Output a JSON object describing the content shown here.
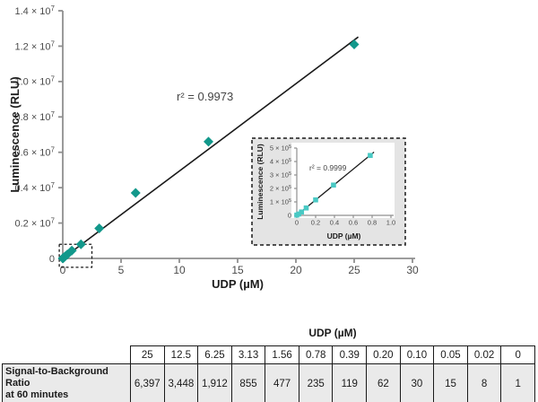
{
  "colors": {
    "main_marker": "#12988b",
    "inset_marker": "#49c9c4",
    "axis": "#8f8f8f",
    "tick_label": "#4b4b4b",
    "title_text": "#1c1c1c",
    "fit_line": "#1a1a1a",
    "annotation_text": "#454545",
    "inset_background": "#e4e4e4",
    "table_cell_background": "#eaeaea",
    "table_border": "#1a1a1a"
  },
  "chart_data": [
    {
      "id": "main-plot",
      "type": "scatter",
      "marker": "diamond",
      "xlabel": "UDP (µM)",
      "ylabel": "Luminescence (RLU)",
      "annotation": "r² = 0.9973",
      "grid": false,
      "legend": null,
      "xlim": [
        0,
        30
      ],
      "ylim": [
        0,
        14000000
      ],
      "xticks": [
        0,
        5,
        10,
        15,
        20,
        25,
        30
      ],
      "xtick_labels": [
        "0",
        "5",
        "10",
        "15",
        "20",
        "25",
        "30"
      ],
      "yticks": [
        0,
        2000000,
        4000000,
        6000000,
        8000000,
        10000000,
        12000000,
        14000000
      ],
      "ytick_labels": [
        "0",
        "0.2 × 10^7",
        "0.4 × 10^7",
        "0.6 × 10^7",
        "0.8 × 10^7",
        "1.0 × 10^7",
        "1.2 × 10^7",
        "1.4 × 10^7"
      ],
      "x": [
        0,
        0.02,
        0.05,
        0.1,
        0.2,
        0.39,
        0.78,
        1.56,
        3.13,
        6.25,
        12.5,
        25
      ],
      "y": [
        2000,
        10000,
        25000,
        55000,
        115000,
        225000,
        445000,
        800000,
        1700000,
        3700000,
        6600000,
        12100000
      ],
      "fit_line": {
        "x": [
          0,
          25.35
        ],
        "y": [
          0,
          12520000
        ]
      },
      "zoom_region": {
        "x1": -0.3,
        "x2": 2.5,
        "y1": -500000,
        "y2": 800000
      }
    },
    {
      "id": "inset-plot",
      "type": "scatter",
      "marker": "square",
      "xlabel": "UDP (µM)",
      "ylabel": "Luminescence (RLU)",
      "annotation": "r² = 0.9999",
      "grid": false,
      "legend": null,
      "xlim": [
        0,
        1.0
      ],
      "ylim": [
        0,
        500000
      ],
      "xticks": [
        0,
        0.2,
        0.4,
        0.6,
        0.8,
        1.0
      ],
      "xtick_labels": [
        "0",
        "0.2",
        "0.4",
        "0.6",
        "0.8",
        "1.0"
      ],
      "yticks": [
        0,
        100000,
        200000,
        300000,
        400000,
        500000
      ],
      "ytick_labels": [
        "0",
        "1 × 10^5",
        "2 × 10^5",
        "3 × 10^5",
        "4 × 10^5",
        "5 × 10^5"
      ],
      "x": [
        0,
        0.02,
        0.05,
        0.1,
        0.2,
        0.39,
        0.78
      ],
      "y": [
        2000,
        10000,
        25000,
        55000,
        115000,
        225000,
        445000
      ],
      "fit_line": {
        "x": [
          0,
          0.82
        ],
        "y": [
          0,
          470000
        ]
      }
    }
  ],
  "table": {
    "caption": "UDP (µM)",
    "row_label_lines": [
      "Signal-to-Background Ratio",
      "at 60 minutes"
    ],
    "columns": [
      "25",
      "12.5",
      "6.25",
      "3.13",
      "1.56",
      "0.78",
      "0.39",
      "0.20",
      "0.10",
      "0.05",
      "0.02",
      "0"
    ],
    "values": [
      "6,397",
      "3,448",
      "1,912",
      "855",
      "477",
      "235",
      "119",
      "62",
      "30",
      "15",
      "8",
      "1"
    ]
  }
}
